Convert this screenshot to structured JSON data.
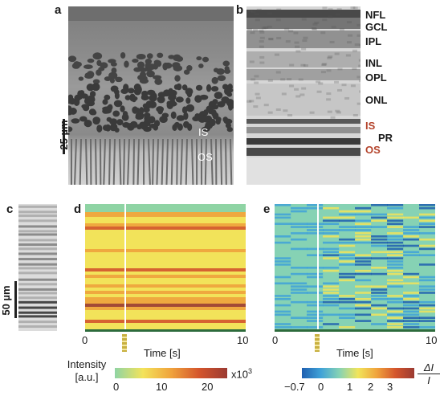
{
  "panels": {
    "a": {
      "label": "a",
      "scalebar": "25 µm",
      "layers": [
        {
          "label": "IS"
        },
        {
          "label": "OS"
        }
      ]
    },
    "b": {
      "label": "b",
      "layers": [
        {
          "label": "NFL",
          "color": "#1a1a1a"
        },
        {
          "label": "GCL",
          "color": "#1a1a1a"
        },
        {
          "label": "IPL",
          "color": "#1a1a1a"
        },
        {
          "label": "INL",
          "color": "#1a1a1a"
        },
        {
          "label": "OPL",
          "color": "#1a1a1a"
        },
        {
          "label": "ONL",
          "color": "#1a1a1a"
        },
        {
          "label": "IS",
          "color": "#b4432b"
        },
        {
          "label": "PR",
          "color": "#1a1a1a"
        },
        {
          "label": "OS",
          "color": "#b4432b"
        }
      ]
    },
    "c": {
      "label": "c",
      "scalebar": "50 µm"
    },
    "d": {
      "label": "d",
      "xticks": [
        "0",
        "10"
      ],
      "xlabel": "Time [s]",
      "stimulus_time": 2.5,
      "colorbar": {
        "title_line1": "Intensity",
        "title_line2": "[a.u.]",
        "ticks": [
          "0",
          "10",
          "20"
        ],
        "multiplier_base": "x10",
        "multiplier_exp": "3",
        "colors": [
          "#8fd4a4",
          "#f3e35a",
          "#f0a33c",
          "#d4552c",
          "#9b3a32"
        ]
      }
    },
    "e": {
      "label": "e",
      "xticks": [
        "0",
        "10"
      ],
      "xlabel": "Time [s]",
      "stimulus_time": 2.5,
      "colorbar": {
        "ticks": [
          "−0.7",
          "0",
          "1",
          "2",
          "3"
        ],
        "unit_num": "ΔI",
        "unit_den": "I",
        "colors": [
          "#1f5fb0",
          "#3fa2d8",
          "#86d2b4",
          "#f1e45a",
          "#f0a33c",
          "#d4552c",
          "#9b3a32"
        ]
      }
    }
  }
}
